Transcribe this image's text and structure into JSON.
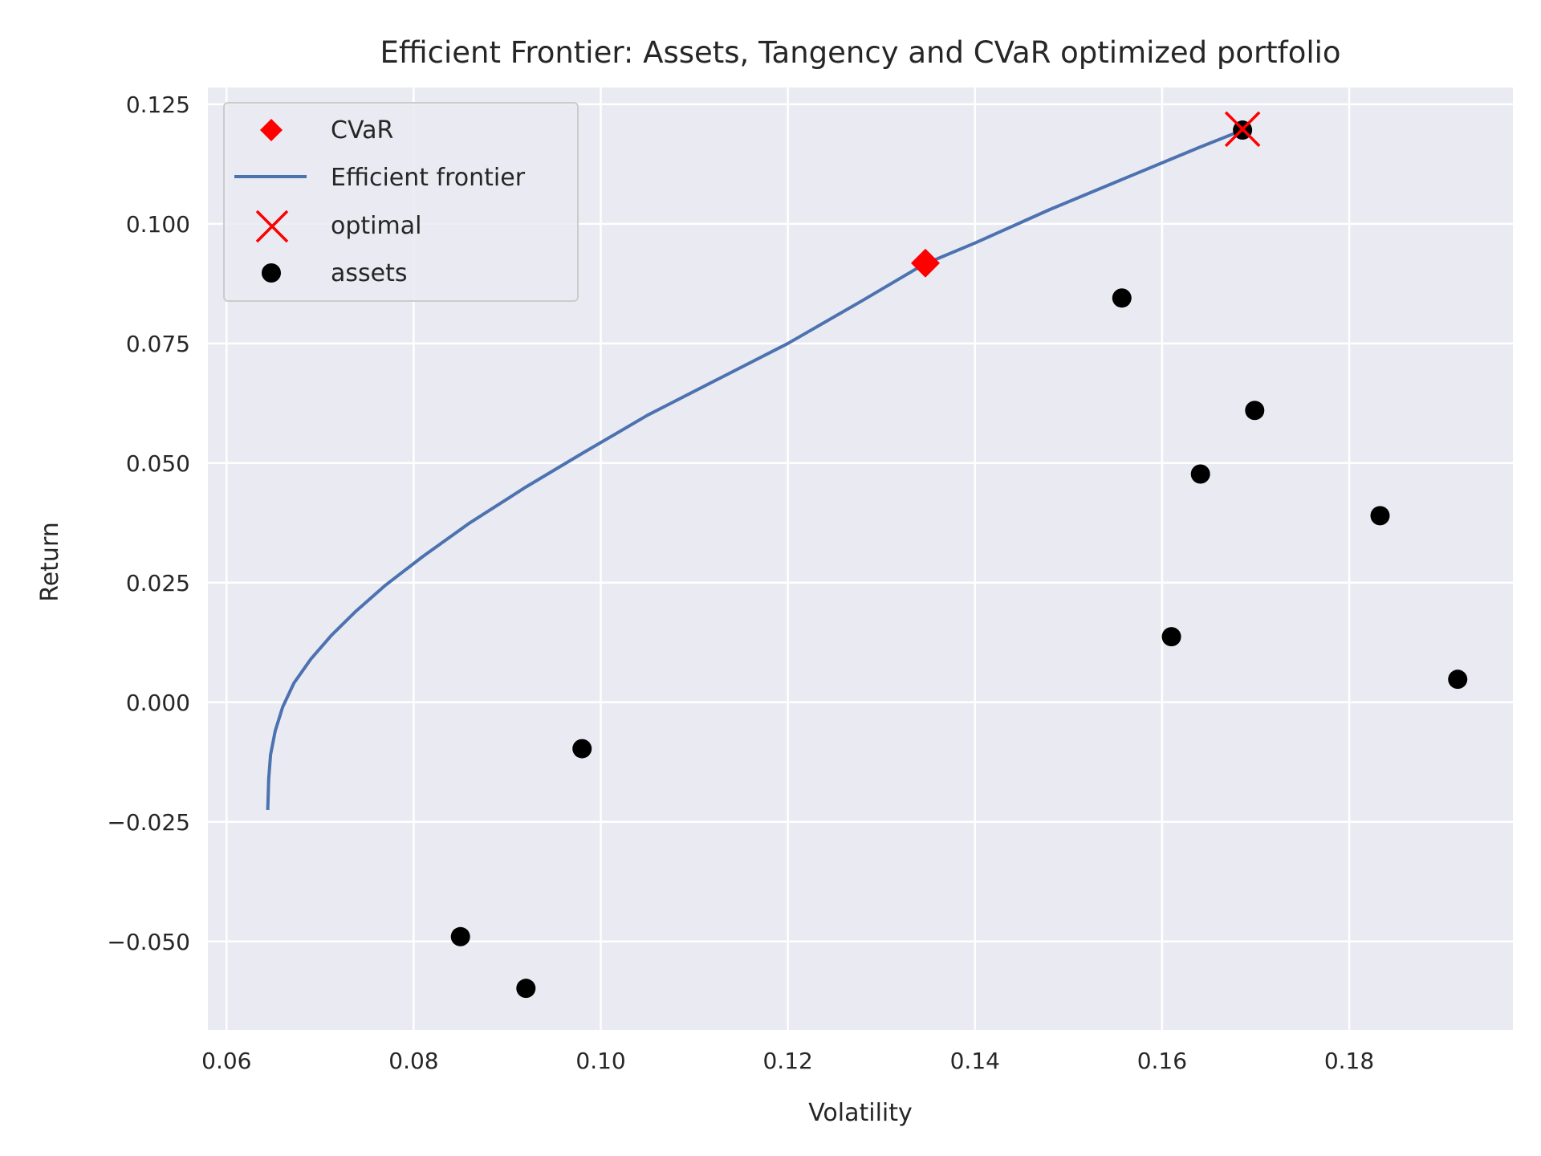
{
  "chart_data": {
    "type": "scatter",
    "title": "Efficient Frontier: Assets, Tangency and CVaR optimized portfolio",
    "xlabel": "Volatility",
    "ylabel": "Return",
    "xlim": [
      0.058,
      0.1975
    ],
    "ylim": [
      -0.0685,
      0.1285
    ],
    "xticks": [
      0.06,
      0.08,
      0.1,
      0.12,
      0.14,
      0.16,
      0.18
    ],
    "xtick_labels": [
      "0.06",
      "0.08",
      "0.10",
      "0.12",
      "0.14",
      "0.16",
      "0.18"
    ],
    "yticks": [
      -0.05,
      -0.025,
      0.0,
      0.025,
      0.05,
      0.075,
      0.1,
      0.125
    ],
    "ytick_labels": [
      "−0.050",
      "−0.025",
      "0.000",
      "0.025",
      "0.050",
      "0.075",
      "0.100",
      "0.125"
    ],
    "grid": true,
    "legend_position": "top-left",
    "legend": [
      {
        "label": "CVaR",
        "marker": "diamond",
        "color": "#ff0000"
      },
      {
        "label": "Efficient frontier",
        "marker": "line",
        "color": "#4c72b0"
      },
      {
        "label": "optimal",
        "marker": "x",
        "color": "#ff0000"
      },
      {
        "label": "assets",
        "marker": "circle",
        "color": "#000000"
      }
    ],
    "series": [
      {
        "name": "Efficient frontier",
        "type": "line",
        "color": "#4c72b0",
        "x": [
          0.0644,
          0.0645,
          0.0647,
          0.0652,
          0.066,
          0.0672,
          0.069,
          0.0712,
          0.0738,
          0.077,
          0.081,
          0.086,
          0.092,
          0.098,
          0.105,
          0.113,
          0.12,
          0.128,
          0.1345,
          0.14,
          0.148,
          0.156,
          0.164,
          0.1685
        ],
        "y": [
          -0.0225,
          -0.016,
          -0.011,
          -0.006,
          -0.001,
          0.004,
          0.009,
          0.014,
          0.019,
          0.0245,
          0.0305,
          0.0375,
          0.045,
          0.052,
          0.06,
          0.068,
          0.075,
          0.084,
          0.0915,
          0.096,
          0.103,
          0.1095,
          0.116,
          0.1195
        ]
      },
      {
        "name": "assets",
        "type": "scatter",
        "color": "#000000",
        "x": [
          0.085,
          0.092,
          0.098,
          0.1557,
          0.161,
          0.1641,
          0.1699,
          0.1833,
          0.1916,
          0.1686
        ],
        "y": [
          -0.049,
          -0.0598,
          -0.0097,
          0.0845,
          0.0137,
          0.0477,
          0.061,
          0.039,
          0.0048,
          0.1196
        ]
      },
      {
        "name": "CVaR",
        "type": "scatter",
        "color": "#ff0000",
        "x": [
          0.1347
        ],
        "y": [
          0.0918
        ]
      },
      {
        "name": "optimal",
        "type": "scatter",
        "color": "#ff0000",
        "x": [
          0.1686
        ],
        "y": [
          0.1198
        ]
      }
    ]
  }
}
